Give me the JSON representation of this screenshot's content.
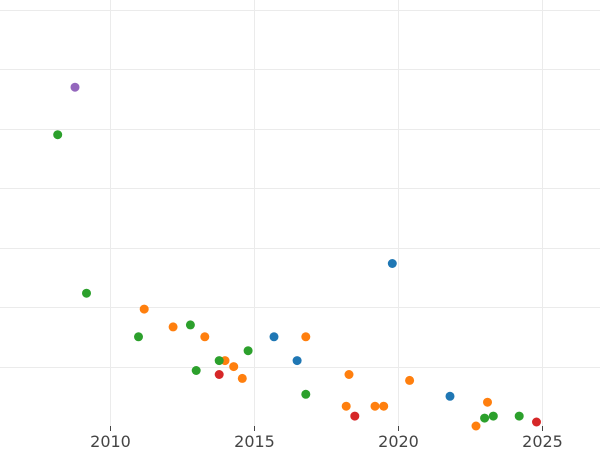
{
  "chart_data": {
    "type": "scatter",
    "title": "",
    "xlabel": "",
    "ylabel": "",
    "grid": true,
    "legend": "none",
    "xlim": [
      2006.2,
      2027.0
    ],
    "ylim": [
      0,
      21.5
    ],
    "x_ticks": [
      2010,
      2015,
      2020,
      2025
    ],
    "x_tick_labels": [
      "2010",
      "2015",
      "2020",
      "2025"
    ],
    "y_gridlines": [
      3,
      6,
      9,
      12,
      15,
      18,
      21
    ],
    "colors": {
      "blue": "#1f77b4",
      "orange": "#ff7f0e",
      "green": "#2ca02c",
      "red": "#d62728",
      "purple": "#9467bd"
    },
    "series": [
      {
        "color": "#1f77b4",
        "points": [
          {
            "x": 2015.7,
            "y": 4.5
          },
          {
            "x": 2016.5,
            "y": 3.3
          },
          {
            "x": 2019.8,
            "y": 8.2
          },
          {
            "x": 2021.8,
            "y": 1.5
          }
        ]
      },
      {
        "color": "#ff7f0e",
        "points": [
          {
            "x": 2011.2,
            "y": 5.9
          },
          {
            "x": 2012.2,
            "y": 5.0
          },
          {
            "x": 2013.3,
            "y": 4.5
          },
          {
            "x": 2014.0,
            "y": 3.3
          },
          {
            "x": 2014.3,
            "y": 3.0
          },
          {
            "x": 2014.6,
            "y": 2.4
          },
          {
            "x": 2016.8,
            "y": 4.5
          },
          {
            "x": 2018.3,
            "y": 2.6
          },
          {
            "x": 2018.2,
            "y": 1.0
          },
          {
            "x": 2019.2,
            "y": 1.0
          },
          {
            "x": 2019.5,
            "y": 1.0
          },
          {
            "x": 2020.4,
            "y": 2.3
          },
          {
            "x": 2022.7,
            "y": 0.0
          },
          {
            "x": 2023.1,
            "y": 1.2
          }
        ]
      },
      {
        "color": "#2ca02c",
        "points": [
          {
            "x": 2008.2,
            "y": 14.7
          },
          {
            "x": 2009.2,
            "y": 6.7
          },
          {
            "x": 2011.0,
            "y": 4.5
          },
          {
            "x": 2012.8,
            "y": 5.1
          },
          {
            "x": 2013.0,
            "y": 2.8
          },
          {
            "x": 2013.8,
            "y": 3.3
          },
          {
            "x": 2014.8,
            "y": 3.8
          },
          {
            "x": 2016.8,
            "y": 1.6
          },
          {
            "x": 2023.0,
            "y": 0.4
          },
          {
            "x": 2023.3,
            "y": 0.5
          },
          {
            "x": 2024.2,
            "y": 0.5
          }
        ]
      },
      {
        "color": "#d62728",
        "points": [
          {
            "x": 2013.8,
            "y": 2.6
          },
          {
            "x": 2018.5,
            "y": 0.5
          },
          {
            "x": 2024.8,
            "y": 0.2
          }
        ]
      },
      {
        "color": "#9467bd",
        "points": [
          {
            "x": 2008.8,
            "y": 17.1
          }
        ]
      }
    ]
  }
}
